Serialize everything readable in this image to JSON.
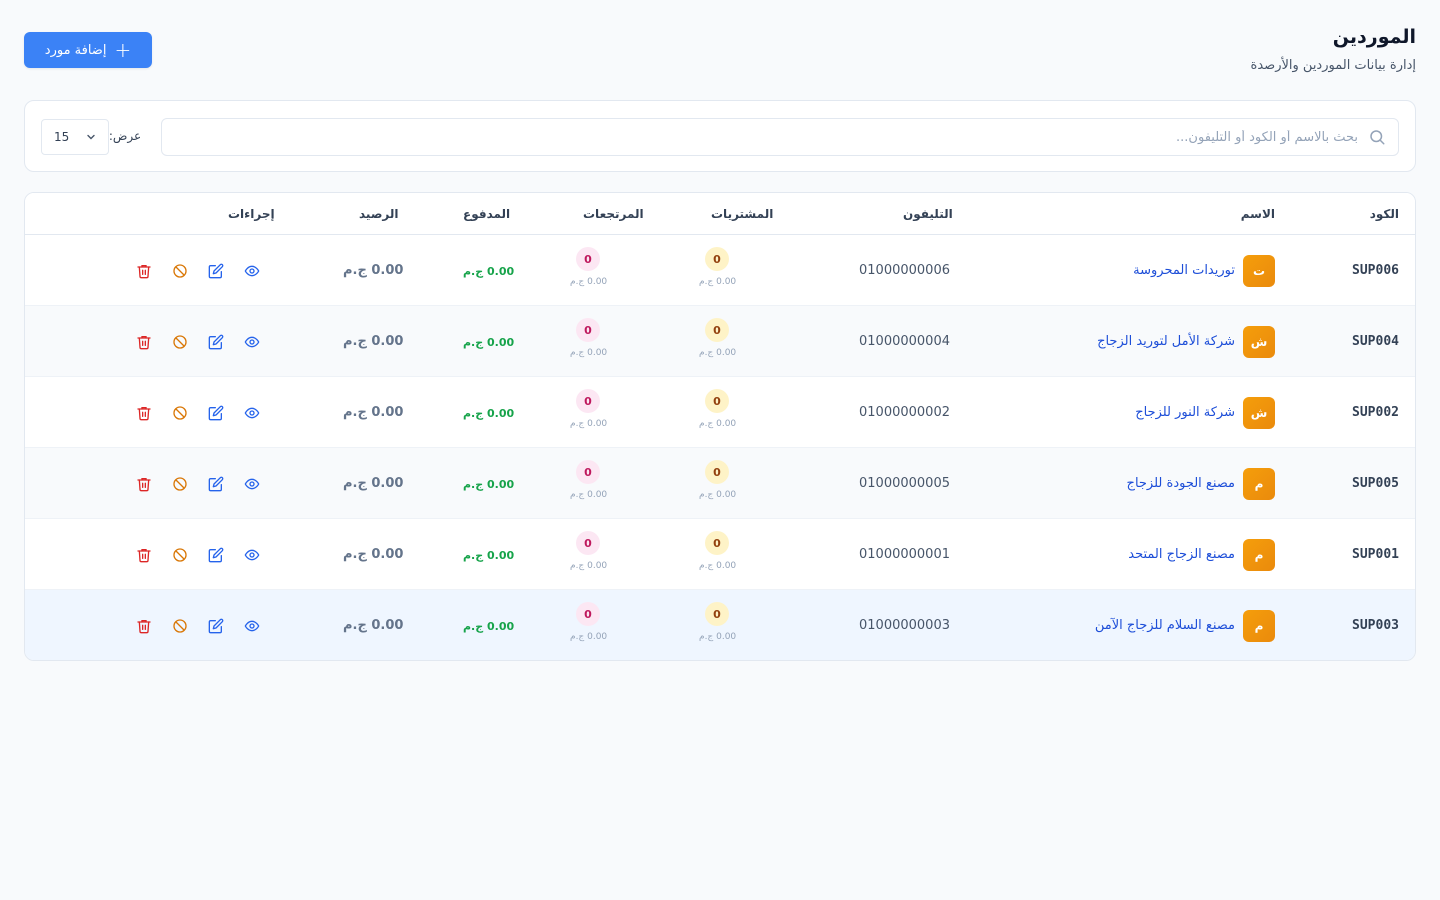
{
  "header": {
    "title": "الموردين",
    "subtitle": "إدارة بيانات الموردين والأرصدة",
    "add_button": "إضافة مورد"
  },
  "filters": {
    "search_placeholder": "بحث بالاسم أو الكود أو التليفون...",
    "show_label": "عرض:",
    "page_size": "15"
  },
  "table": {
    "columns": {
      "code": "الكود",
      "name": "الاسم",
      "phone": "التليفون",
      "purchases": "المشتريات",
      "returns": "المرتجعات",
      "paid": "المدفوع",
      "balance": "الرصيد",
      "actions": "إجراءات"
    },
    "rows": [
      {
        "code": "SUP006",
        "initial": "ت",
        "name": "توريدات المحروسة",
        "phone": "01000000006",
        "purchases_count": "0",
        "purchases_amount": "0.00 ج.م",
        "returns_count": "0",
        "returns_amount": "0.00 ج.م",
        "paid": "0.00 ج.م",
        "balance": "0.00 ج.م"
      },
      {
        "code": "SUP004",
        "initial": "ش",
        "name": "شركة الأمل لتوريد الزجاج",
        "phone": "01000000004",
        "purchases_count": "0",
        "purchases_amount": "0.00 ج.م",
        "returns_count": "0",
        "returns_amount": "0.00 ج.م",
        "paid": "0.00 ج.م",
        "balance": "0.00 ج.م"
      },
      {
        "code": "SUP002",
        "initial": "ش",
        "name": "شركة النور للزجاج",
        "phone": "01000000002",
        "purchases_count": "0",
        "purchases_amount": "0.00 ج.م",
        "returns_count": "0",
        "returns_amount": "0.00 ج.م",
        "paid": "0.00 ج.م",
        "balance": "0.00 ج.م"
      },
      {
        "code": "SUP005",
        "initial": "م",
        "name": "مصنع الجودة للزجاج",
        "phone": "01000000005",
        "purchases_count": "0",
        "purchases_amount": "0.00 ج.م",
        "returns_count": "0",
        "returns_amount": "0.00 ج.م",
        "paid": "0.00 ج.م",
        "balance": "0.00 ج.م"
      },
      {
        "code": "SUP001",
        "initial": "م",
        "name": "مصنع الزجاج المتحد",
        "phone": "01000000001",
        "purchases_count": "0",
        "purchases_amount": "0.00 ج.م",
        "returns_count": "0",
        "returns_amount": "0.00 ج.م",
        "paid": "0.00 ج.م",
        "balance": "0.00 ج.م"
      },
      {
        "code": "SUP003",
        "initial": "م",
        "name": "مصنع السلام للزجاج الآمن",
        "phone": "01000000003",
        "purchases_count": "0",
        "purchases_amount": "0.00 ج.م",
        "returns_count": "0",
        "returns_amount": "0.00 ج.م",
        "paid": "0.00 ج.م",
        "balance": "0.00 ج.م"
      }
    ]
  },
  "colors": {
    "primary": "#3b82f6",
    "link": "#1d4ed8",
    "avatar": "#f59e0b",
    "paid": "#16a34a",
    "danger": "#dc2626",
    "warning": "#d97706"
  },
  "icons": {
    "add": "plus-icon",
    "search": "search-icon",
    "select": "chevron-down-icon",
    "view": "eye-icon",
    "edit": "edit-icon",
    "block": "ban-icon",
    "delete": "trash-icon"
  }
}
